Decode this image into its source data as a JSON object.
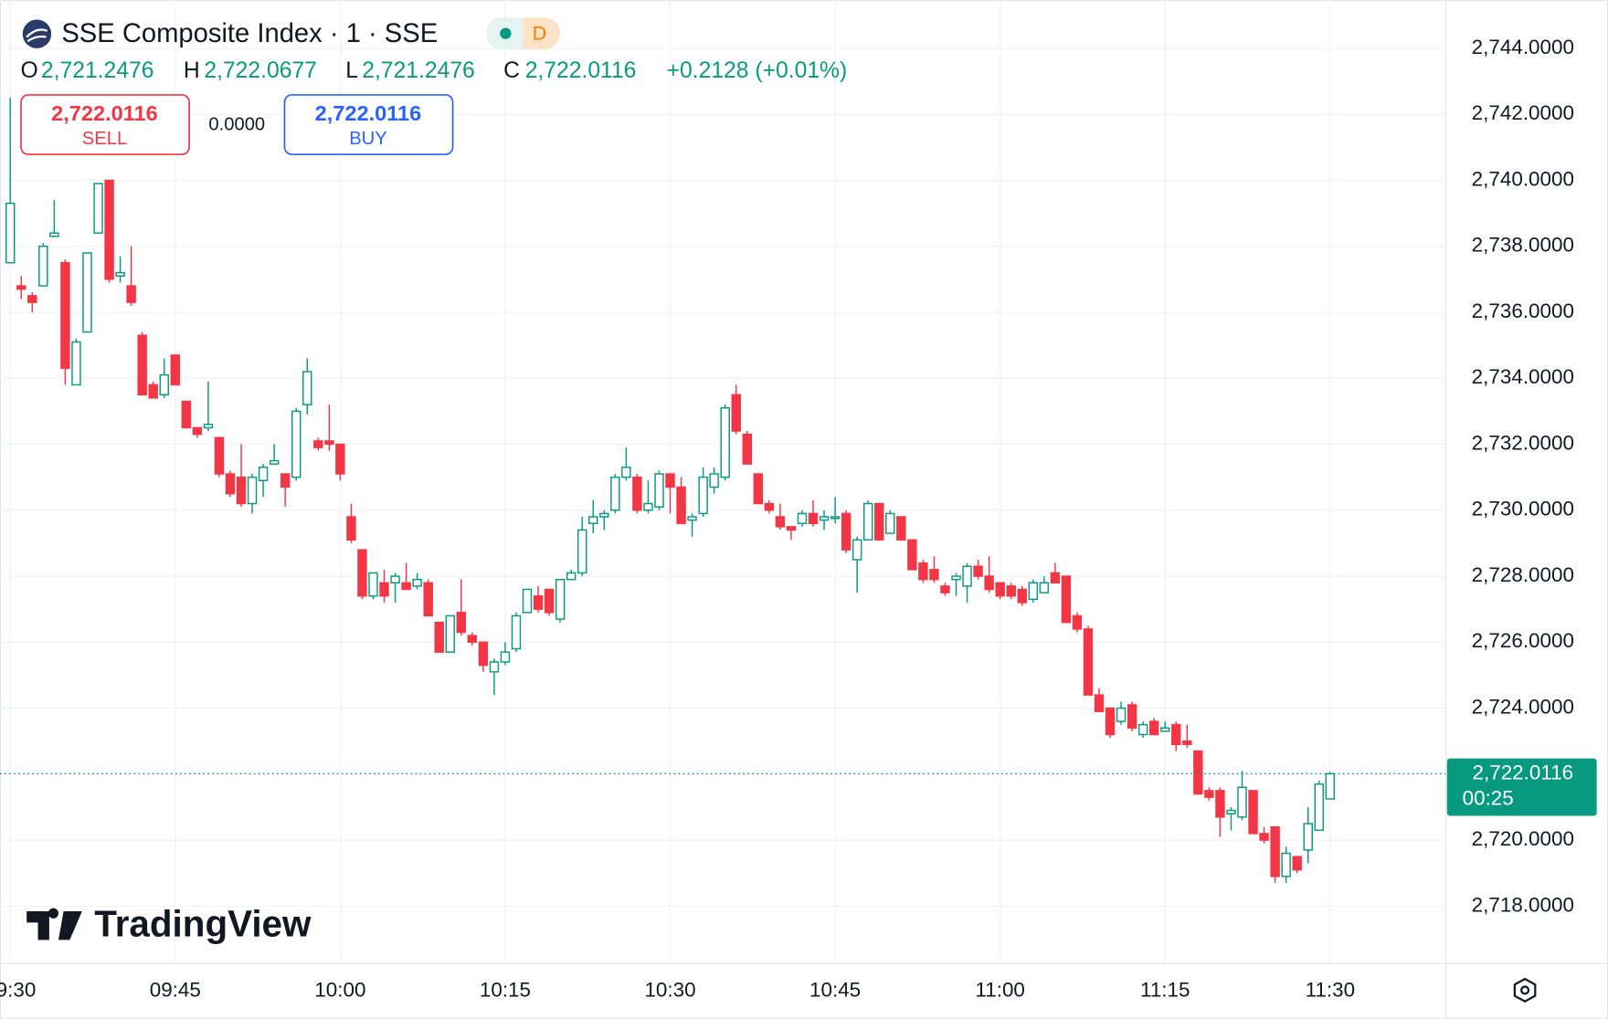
{
  "header": {
    "title": "SSE Composite Index · 1 · SSE",
    "badge": "D",
    "legend": [
      {
        "label": "O",
        "value": "2,721.2476"
      },
      {
        "label": "H",
        "value": "2,722.0677"
      },
      {
        "label": "L",
        "value": "2,721.2476"
      },
      {
        "label": "C",
        "value": "2,722.0116"
      }
    ],
    "change": "+0.2128 (+0.01%)"
  },
  "trade": {
    "sell": {
      "price": "2,722.0116",
      "label": "SELL"
    },
    "spread": "0.0000",
    "buy": {
      "price": "2,722.0116",
      "label": "BUY"
    }
  },
  "logo": "TradingView",
  "chart_data": {
    "type": "candlestick",
    "up_color": "#089981",
    "down_color": "#f23645",
    "grid": true,
    "x": [
      "09:30",
      "09:31",
      "09:32",
      "09:33",
      "09:34",
      "09:35",
      "09:36",
      "09:37",
      "09:38",
      "09:39",
      "09:40",
      "09:41",
      "09:42",
      "09:43",
      "09:44",
      "09:45",
      "09:46",
      "09:47",
      "09:48",
      "09:49",
      "09:50",
      "09:51",
      "09:52",
      "09:53",
      "09:54",
      "09:55",
      "09:56",
      "09:57",
      "09:58",
      "09:59",
      "10:00",
      "10:01",
      "10:02",
      "10:03",
      "10:04",
      "10:05",
      "10:06",
      "10:07",
      "10:08",
      "10:09",
      "10:10",
      "10:11",
      "10:12",
      "10:13",
      "10:14",
      "10:15",
      "10:16",
      "10:17",
      "10:18",
      "10:19",
      "10:20",
      "10:21",
      "10:22",
      "10:23",
      "10:24",
      "10:25",
      "10:26",
      "10:27",
      "10:28",
      "10:29",
      "10:30",
      "10:31",
      "10:32",
      "10:33",
      "10:34",
      "10:35",
      "10:36",
      "10:37",
      "10:38",
      "10:39",
      "10:40",
      "10:41",
      "10:42",
      "10:43",
      "10:44",
      "10:45",
      "10:46",
      "10:47",
      "10:48",
      "10:49",
      "10:50",
      "10:51",
      "10:52",
      "10:53",
      "10:54",
      "10:55",
      "10:56",
      "10:57",
      "10:58",
      "10:59",
      "11:00",
      "11:01",
      "11:02",
      "11:03",
      "11:04",
      "11:05",
      "11:06",
      "11:07",
      "11:08",
      "11:09",
      "11:10",
      "11:11",
      "11:12",
      "11:13",
      "11:14",
      "11:15",
      "11:16",
      "11:17",
      "11:18",
      "11:19",
      "11:20",
      "11:21",
      "11:22",
      "11:23",
      "11:24",
      "11:25",
      "11:26",
      "11:27",
      "11:28",
      "11:29",
      "11:30"
    ],
    "open": [
      2737.5,
      2736.8,
      2736.5,
      2736.8,
      2738.3,
      2737.5,
      2733.8,
      2735.4,
      2738.4,
      2740.0,
      2737.1,
      2736.8,
      2735.3,
      2733.8,
      2733.5,
      2734.7,
      2733.3,
      2732.5,
      2732.5,
      2732.2,
      2731.1,
      2731.0,
      2730.2,
      2730.9,
      2731.4,
      2731.1,
      2731.0,
      2733.2,
      2732.1,
      2732.1,
      2732.0,
      2729.8,
      2728.8,
      2727.4,
      2727.8,
      2727.8,
      2727.8,
      2727.7,
      2727.8,
      2726.6,
      2725.7,
      2726.9,
      2726.2,
      2726.0,
      2725.1,
      2725.4,
      2725.8,
      2726.9,
      2727.4,
      2727.6,
      2726.7,
      2727.9,
      2728.1,
      2729.6,
      2729.8,
      2730.0,
      2731.0,
      2731.0,
      2730.0,
      2730.1,
      2731.1,
      2730.7,
      2729.7,
      2729.9,
      2730.7,
      2731.0,
      2733.5,
      2732.3,
      2731.1,
      2730.2,
      2729.8,
      2729.5,
      2729.6,
      2729.9,
      2729.7,
      2729.75,
      2729.9,
      2728.5,
      2729.1,
      2730.2,
      2729.3,
      2729.8,
      2729.1,
      2728.4,
      2728.2,
      2727.7,
      2727.9,
      2727.7,
      2728.3,
      2728.0,
      2727.8,
      2727.7,
      2727.6,
      2727.3,
      2727.5,
      2728.1,
      2728.0,
      2726.8,
      2726.4,
      2724.4,
      2724.0,
      2723.6,
      2724.1,
      2723.2,
      2723.6,
      2723.3,
      2723.5,
      2723.0,
      2722.7,
      2721.5,
      2721.5,
      2720.8,
      2720.7,
      2721.5,
      2720.2,
      2720.4,
      2718.9,
      2719.5,
      2719.7,
      2720.3,
      2721.2476
    ],
    "high": [
      2742.5,
      2737.1,
      2736.6,
      2738.1,
      2739.4,
      2737.6,
      2735.2,
      2737.8,
      2739.9,
      2740.0,
      2737.7,
      2738.0,
      2735.4,
      2733.9,
      2734.6,
      2734.7,
      2733.3,
      2732.5,
      2733.9,
      2732.2,
      2731.2,
      2732.0,
      2731.1,
      2731.4,
      2732.0,
      2731.1,
      2733.1,
      2734.6,
      2732.2,
      2733.2,
      2732.0,
      2730.2,
      2728.8,
      2728.1,
      2728.2,
      2728.1,
      2728.4,
      2728.1,
      2727.9,
      2726.6,
      2726.8,
      2727.9,
      2726.3,
      2726.0,
      2725.5,
      2726.0,
      2726.9,
      2727.6,
      2727.7,
      2727.6,
      2727.9,
      2728.2,
      2729.8,
      2730.3,
      2730.0,
      2731.1,
      2731.9,
      2731.1,
      2730.9,
      2731.2,
      2731.1,
      2731.0,
      2729.9,
      2731.3,
      2731.3,
      2733.2,
      2733.8,
      2732.4,
      2731.1,
      2730.3,
      2730.2,
      2729.5,
      2730.0,
      2730.3,
      2730.0,
      2730.4,
      2730.0,
      2729.2,
      2730.3,
      2730.2,
      2730.0,
      2729.8,
      2729.1,
      2728.5,
      2728.6,
      2727.8,
      2728.1,
      2728.4,
      2728.5,
      2728.6,
      2727.8,
      2727.8,
      2727.7,
      2727.9,
      2728.0,
      2728.4,
      2728.0,
      2726.9,
      2726.5,
      2724.6,
      2724.0,
      2724.2,
      2724.2,
      2723.6,
      2723.7,
      2723.6,
      2723.6,
      2723.5,
      2722.7,
      2721.6,
      2721.6,
      2721.0,
      2722.1,
      2721.5,
      2720.4,
      2720.4,
      2719.8,
      2719.5,
      2721.0,
      2721.8,
      2722.0677
    ],
    "low": [
      2737.5,
      2736.4,
      2736.0,
      2736.8,
      2738.3,
      2733.8,
      2733.8,
      2735.4,
      2738.4,
      2736.9,
      2736.9,
      2736.2,
      2733.5,
      2733.4,
      2733.4,
      2733.8,
      2732.5,
      2732.2,
      2732.4,
      2731.0,
      2730.4,
      2730.1,
      2729.9,
      2730.4,
      2731.4,
      2730.1,
      2730.9,
      2732.9,
      2731.8,
      2731.8,
      2730.9,
      2729.0,
      2727.3,
      2727.3,
      2727.2,
      2727.2,
      2727.6,
      2727.6,
      2726.8,
      2725.7,
      2725.7,
      2726.2,
      2725.9,
      2725.1,
      2724.4,
      2725.3,
      2725.7,
      2726.9,
      2726.9,
      2726.8,
      2726.6,
      2727.9,
      2728.0,
      2729.3,
      2729.4,
      2729.9,
      2730.9,
      2729.9,
      2729.9,
      2730.0,
      2729.9,
      2729.6,
      2729.2,
      2729.8,
      2730.5,
      2730.9,
      2732.3,
      2731.4,
      2730.2,
      2729.9,
      2729.4,
      2729.1,
      2729.5,
      2729.5,
      2729.4,
      2729.6,
      2728.7,
      2727.5,
      2729.1,
      2729.1,
      2729.3,
      2729.1,
      2728.2,
      2727.8,
      2727.8,
      2727.4,
      2727.4,
      2727.2,
      2727.9,
      2727.5,
      2727.3,
      2727.3,
      2727.1,
      2727.2,
      2727.5,
      2727.8,
      2726.6,
      2726.3,
      2724.4,
      2723.9,
      2723.1,
      2723.5,
      2723.3,
      2723.1,
      2723.2,
      2723.3,
      2722.7,
      2722.8,
      2721.4,
      2721.2,
      2720.1,
      2720.3,
      2720.6,
      2720.2,
      2719.9,
      2718.7,
      2718.7,
      2719.0,
      2719.3,
      2720.3,
      2721.2476
    ],
    "close": [
      2739.3,
      2736.7,
      2736.3,
      2738.0,
      2738.4,
      2734.3,
      2735.1,
      2737.8,
      2739.9,
      2737.0,
      2737.2,
      2736.3,
      2733.5,
      2733.4,
      2734.1,
      2733.8,
      2732.5,
      2732.3,
      2732.6,
      2731.1,
      2730.5,
      2730.2,
      2731.0,
      2731.3,
      2731.5,
      2730.7,
      2733.0,
      2734.2,
      2731.9,
      2732.0,
      2731.1,
      2729.1,
      2727.4,
      2728.1,
      2727.4,
      2728.0,
      2727.6,
      2727.9,
      2726.8,
      2725.7,
      2726.8,
      2726.3,
      2726.0,
      2725.3,
      2725.4,
      2725.7,
      2726.8,
      2727.6,
      2727.0,
      2726.9,
      2727.9,
      2728.1,
      2729.4,
      2729.8,
      2729.9,
      2731.0,
      2731.3,
      2730.0,
      2730.2,
      2731.1,
      2730.7,
      2729.6,
      2729.8,
      2731.0,
      2731.1,
      2733.1,
      2732.4,
      2731.4,
      2730.2,
      2730.0,
      2729.5,
      2729.4,
      2729.9,
      2729.6,
      2729.8,
      2729.8,
      2728.8,
      2729.1,
      2730.2,
      2729.1,
      2729.9,
      2729.1,
      2728.2,
      2727.9,
      2727.9,
      2727.5,
      2728.0,
      2728.3,
      2728.0,
      2727.6,
      2727.4,
      2727.4,
      2727.2,
      2727.8,
      2727.8,
      2727.8,
      2726.6,
      2726.4,
      2724.4,
      2723.9,
      2723.2,
      2724.0,
      2723.4,
      2723.5,
      2723.2,
      2723.4,
      2722.9,
      2722.9,
      2721.4,
      2721.3,
      2720.7,
      2720.9,
      2721.6,
      2720.2,
      2720.0,
      2718.9,
      2719.6,
      2719.1,
      2720.5,
      2721.7,
      2722.0116
    ],
    "ylim": [
      2716.26,
      2745.46
    ],
    "yticks": [
      {
        "value": 2718,
        "label": "2,718.0000"
      },
      {
        "value": 2720,
        "label": "2,720.0000"
      },
      {
        "value": 2722,
        "label": "2,722.0000"
      },
      {
        "value": 2724,
        "label": "2,724.0000"
      },
      {
        "value": 2726,
        "label": "2,726.0000"
      },
      {
        "value": 2728,
        "label": "2,728.0000"
      },
      {
        "value": 2730,
        "label": "2,730.0000"
      },
      {
        "value": 2732,
        "label": "2,732.0000"
      },
      {
        "value": 2734,
        "label": "2,734.0000"
      },
      {
        "value": 2736,
        "label": "2,736.0000"
      },
      {
        "value": 2738,
        "label": "2,738.0000"
      },
      {
        "value": 2740,
        "label": "2,740.0000"
      },
      {
        "value": 2742,
        "label": "2,742.0000"
      },
      {
        "value": 2744,
        "label": "2,744.0000"
      }
    ],
    "xticks": [
      "09:30",
      "09:45",
      "10:00",
      "10:15",
      "10:30",
      "10:45",
      "11:00",
      "11:15",
      "11:30"
    ],
    "last_price": {
      "value": 2722.0116,
      "label": "2,722.0116"
    },
    "countdown": "00:25"
  }
}
